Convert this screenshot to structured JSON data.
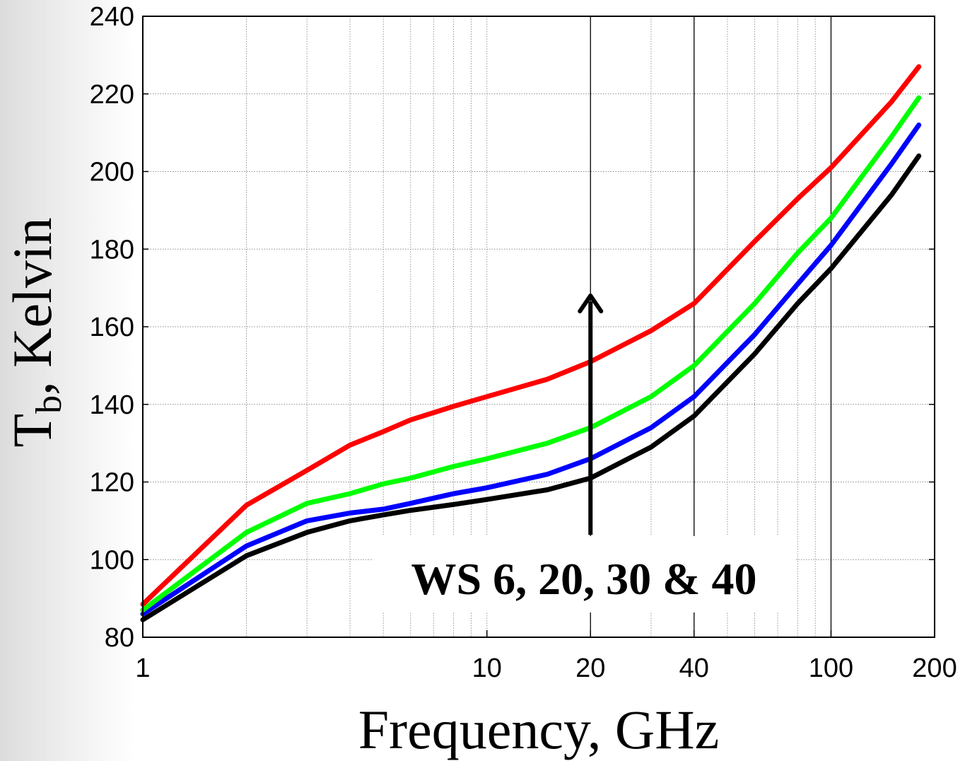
{
  "chart_data": {
    "type": "line",
    "xlabel": "Frequency, GHz",
    "ylabel_main": "T",
    "ylabel_sub": "b",
    "ylabel_rest": ", Kelvin",
    "x_scale": "log",
    "xlim": [
      1,
      200
    ],
    "ylim": [
      80,
      240
    ],
    "grid": true,
    "x_ticks": [
      1,
      10,
      20,
      40,
      100,
      200
    ],
    "x_tick_labels": [
      "1",
      "10",
      "20",
      "40",
      "100",
      "200"
    ],
    "y_ticks": [
      80,
      100,
      120,
      140,
      160,
      180,
      200,
      220,
      240
    ],
    "y_tick_labels": [
      "80",
      "100",
      "120",
      "140",
      "160",
      "180",
      "200",
      "220",
      "240"
    ],
    "series": [
      {
        "color": "#000000",
        "x": [
          1,
          2,
          3,
          4,
          5,
          6,
          8,
          10,
          15,
          20,
          30,
          40,
          60,
          80,
          100,
          150,
          180
        ],
        "y": [
          84.5,
          101,
          107,
          110,
          111.5,
          112.7,
          114.2,
          115.5,
          118,
          121,
          129,
          137,
          153,
          166,
          175,
          194,
          204
        ]
      },
      {
        "color": "#0000ff",
        "x": [
          1,
          2,
          3,
          4,
          5,
          6,
          8,
          10,
          15,
          20,
          30,
          40,
          60,
          80,
          100,
          150,
          180
        ],
        "y": [
          86,
          103.5,
          110,
          112,
          113,
          114.5,
          117,
          118.5,
          122,
          126,
          134,
          142,
          158,
          171,
          181,
          202,
          212
        ]
      },
      {
        "color": "#00ff00",
        "x": [
          1,
          2,
          3,
          4,
          5,
          6,
          8,
          10,
          15,
          20,
          30,
          40,
          60,
          80,
          100,
          150,
          180
        ],
        "y": [
          87,
          107,
          114.5,
          117,
          119.5,
          121,
          124,
          126,
          130,
          134,
          142,
          150,
          166,
          179,
          188,
          209,
          219
        ]
      },
      {
        "color": "#ff0000",
        "x": [
          1,
          2,
          3,
          4,
          5,
          6,
          8,
          10,
          15,
          20,
          30,
          40,
          60,
          80,
          100,
          150,
          180
        ],
        "y": [
          88.5,
          114,
          123,
          129.5,
          133,
          136,
          139.5,
          142,
          146.5,
          151,
          159,
          166,
          182,
          193,
          201,
          218,
          227
        ]
      }
    ],
    "annotations": [
      {
        "text": "WS 6, 20, 30 & 40",
        "arrow": {
          "x": 20,
          "y_from": 100,
          "y_to": 168
        }
      }
    ]
  }
}
